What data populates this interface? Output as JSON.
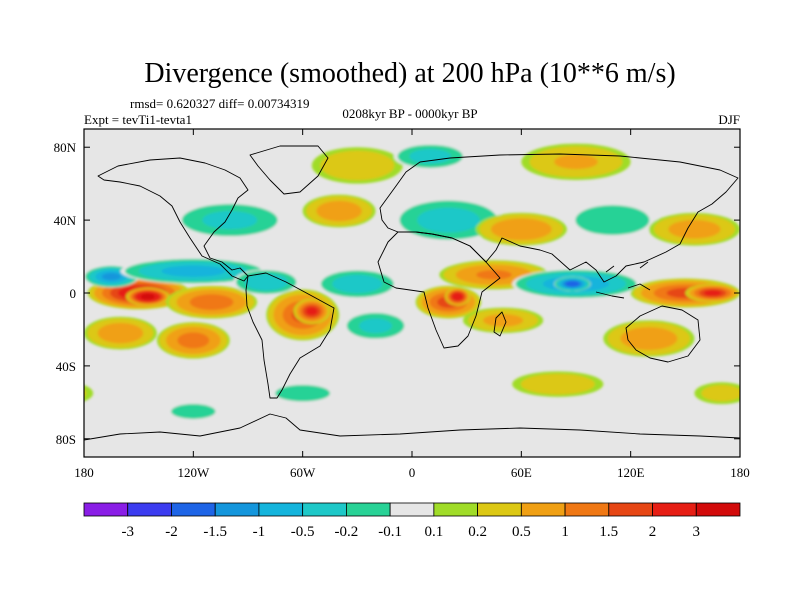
{
  "chart_data": {
    "type": "heatmap",
    "title": "Divergence (smoothed) at 200 hPa (10**6 m/s)",
    "stats": "rmsd= 0.620327 diff= 0.00734319",
    "experiment": "Expt = tevTi1-tevta1",
    "period": "0208kyr BP - 0000kyr BP",
    "season": "DJF",
    "x_ticks": [
      {
        "value": -180,
        "label": "180"
      },
      {
        "value": -120,
        "label": "120W"
      },
      {
        "value": -60,
        "label": "60W"
      },
      {
        "value": 0,
        "label": "0"
      },
      {
        "value": 60,
        "label": "60E"
      },
      {
        "value": 120,
        "label": "120E"
      },
      {
        "value": 180,
        "label": "180"
      }
    ],
    "y_ticks": [
      {
        "value": 80,
        "label": "80N"
      },
      {
        "value": 40,
        "label": "40N"
      },
      {
        "value": 0,
        "label": "0"
      },
      {
        "value": -40,
        "label": "40S"
      },
      {
        "value": -80,
        "label": "80S"
      }
    ],
    "xlim": [
      -180,
      180
    ],
    "ylim": [
      -90,
      90
    ],
    "colorbar": {
      "labels": [
        "-3",
        "-2",
        "-1.5",
        "-1",
        "-0.5",
        "-0.2",
        "-0.1",
        "0.1",
        "0.2",
        "0.5",
        "1",
        "1.5",
        "2",
        "3"
      ],
      "levels": [
        -3,
        -2,
        -1.5,
        -1,
        -0.5,
        -0.2,
        -0.1,
        0.1,
        0.2,
        0.5,
        1,
        1.5,
        2,
        3
      ],
      "colors": [
        "#8a1ee6",
        "#3c3cf0",
        "#1e64e6",
        "#1496dc",
        "#14b4dc",
        "#1ec8c8",
        "#28d296",
        "#e6e6e6",
        "#a0dc28",
        "#dcc814",
        "#f0a014",
        "#f07814",
        "#e64614",
        "#e61e14",
        "#d20a0a"
      ]
    },
    "blobs": [
      {
        "lon": -150,
        "lat": 0,
        "rx": 28,
        "ry": 9,
        "value": 2.4
      },
      {
        "lon": -145,
        "lat": -2,
        "rx": 12,
        "ry": 5,
        "value": 3.2
      },
      {
        "lon": -110,
        "lat": -5,
        "rx": 25,
        "ry": 9,
        "value": 1.3
      },
      {
        "lon": -165,
        "lat": 9,
        "rx": 15,
        "ry": 6,
        "value": -1.6
      },
      {
        "lon": -120,
        "lat": 12,
        "rx": 40,
        "ry": 7,
        "value": -1.2
      },
      {
        "lon": -80,
        "lat": 6,
        "rx": 18,
        "ry": 7,
        "value": -0.9
      },
      {
        "lon": -160,
        "lat": -22,
        "rx": 20,
        "ry": 9,
        "value": 0.8
      },
      {
        "lon": -120,
        "lat": -26,
        "rx": 20,
        "ry": 10,
        "value": 1.2
      },
      {
        "lon": -60,
        "lat": -12,
        "rx": 20,
        "ry": 14,
        "value": 1.5
      },
      {
        "lon": -55,
        "lat": -10,
        "rx": 10,
        "ry": 7,
        "value": 2.1
      },
      {
        "lon": -30,
        "lat": 5,
        "rx": 22,
        "ry": 8,
        "value": -0.8
      },
      {
        "lon": -20,
        "lat": -18,
        "rx": 18,
        "ry": 8,
        "value": -0.6
      },
      {
        "lon": 20,
        "lat": -5,
        "rx": 18,
        "ry": 9,
        "value": 1.6
      },
      {
        "lon": 25,
        "lat": -2,
        "rx": 7,
        "ry": 5,
        "value": 2.6
      },
      {
        "lon": 45,
        "lat": 10,
        "rx": 30,
        "ry": 8,
        "value": 1.0
      },
      {
        "lon": 50,
        "lat": -15,
        "rx": 22,
        "ry": 7,
        "value": 0.6
      },
      {
        "lon": 90,
        "lat": 5,
        "rx": 35,
        "ry": 8,
        "value": -1.4
      },
      {
        "lon": 88,
        "lat": 5,
        "rx": 10,
        "ry": 4,
        "value": -2.4
      },
      {
        "lon": 150,
        "lat": 0,
        "rx": 30,
        "ry": 8,
        "value": 1.6
      },
      {
        "lon": 165,
        "lat": 0,
        "rx": 15,
        "ry": 5,
        "value": 2.1
      },
      {
        "lon": 130,
        "lat": -25,
        "rx": 25,
        "ry": 10,
        "value": 0.8
      },
      {
        "lon": -100,
        "lat": 40,
        "rx": 30,
        "ry": 10,
        "value": -0.6
      },
      {
        "lon": -40,
        "lat": 45,
        "rx": 20,
        "ry": 9,
        "value": 0.8
      },
      {
        "lon": 20,
        "lat": 40,
        "rx": 30,
        "ry": 12,
        "value": -0.7
      },
      {
        "lon": 60,
        "lat": 35,
        "rx": 25,
        "ry": 9,
        "value": 0.9
      },
      {
        "lon": 110,
        "lat": 40,
        "rx": 25,
        "ry": 10,
        "value": -0.4
      },
      {
        "lon": 155,
        "lat": 35,
        "rx": 25,
        "ry": 9,
        "value": 0.7
      },
      {
        "lon": -30,
        "lat": 70,
        "rx": 25,
        "ry": 10,
        "value": 0.4
      },
      {
        "lon": 10,
        "lat": 75,
        "rx": 20,
        "ry": 7,
        "value": -0.7
      },
      {
        "lon": 90,
        "lat": 72,
        "rx": 30,
        "ry": 10,
        "value": 0.5
      },
      {
        "lon": -60,
        "lat": -55,
        "rx": 20,
        "ry": 6,
        "value": -0.3
      },
      {
        "lon": 80,
        "lat": -50,
        "rx": 25,
        "ry": 7,
        "value": 0.4
      },
      {
        "lon": -120,
        "lat": -65,
        "rx": 15,
        "ry": 5,
        "value": -0.4
      },
      {
        "lon": 170,
        "lat": -55,
        "rx": 15,
        "ry": 6,
        "value": 0.3
      }
    ]
  }
}
